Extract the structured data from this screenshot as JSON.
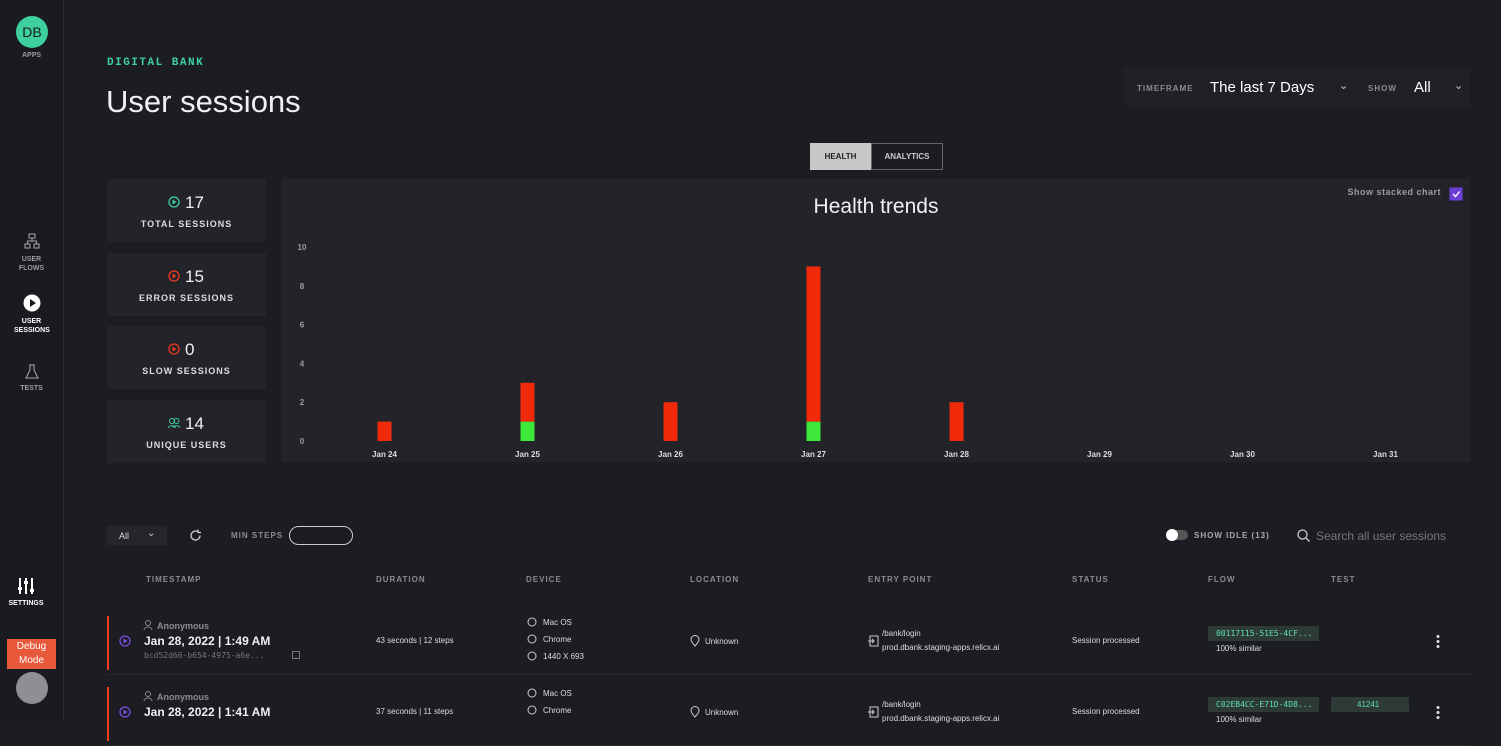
{
  "sidebar": {
    "logo": "DB",
    "apps": "APPS",
    "nav": [
      "USER FLOWS",
      "USER SESSIONS",
      "TESTS"
    ],
    "settings": "SETTINGS",
    "debug": "Debug Mode"
  },
  "header": {
    "eyebrow": "DIGITAL BANK",
    "title": "User sessions",
    "timeframe_label": "TIMEFRAME",
    "timeframe": "The last 7 Days",
    "show_label": "SHOW",
    "show": "All"
  },
  "tabs": [
    "HEALTH",
    "ANALYTICS"
  ],
  "stats": [
    {
      "value": 17,
      "label": "TOTAL SESSIONS"
    },
    {
      "value": 15,
      "label": "ERROR SESSIONS"
    },
    {
      "value": 0,
      "label": "SLOW SESSIONS"
    },
    {
      "value": 14,
      "label": "UNIQUE USERS"
    }
  ],
  "chart_data": {
    "type": "bar",
    "title": "Health trends",
    "stacked_toggle": "Show stacked chart",
    "stacked": true,
    "categories": [
      "Jan 24",
      "Jan 25",
      "Jan 26",
      "Jan 27",
      "Jan 28",
      "Jan 29",
      "Jan 30",
      "Jan 31"
    ],
    "series": [
      {
        "color": "#3ee83a",
        "values": [
          0,
          1,
          0,
          1,
          0,
          0,
          0,
          0
        ]
      },
      {
        "color": "#f02a0a",
        "values": [
          1,
          2,
          2,
          8,
          2,
          0,
          0,
          0
        ]
      }
    ],
    "ylim": [
      0,
      10
    ],
    "yticks": [
      0,
      2,
      4,
      6,
      8,
      10
    ],
    "grid": false
  },
  "filters": {
    "select": "All",
    "min_steps": "MIN STEPS",
    "show_idle": "SHOW IDLE (13)",
    "search": "Search all user sessions"
  },
  "table": {
    "columns": [
      "TIMESTAMP",
      "DURATION",
      "DEVICE",
      "LOCATION",
      "ENTRY POINT",
      "STATUS",
      "FLOW",
      "TEST"
    ],
    "rows": [
      {
        "user": "Anonymous",
        "timestamp": "Jan 28, 2022 | 1:49 AM",
        "id": "bcd52d66-b654-4975-a6e...",
        "duration": "43 seconds | 12 steps",
        "device": [
          "Mac OS",
          "Chrome",
          "1440 X 693"
        ],
        "location": "Unknown",
        "entry": [
          "/bank/login",
          "prod.dbank.staging-apps.relicx.ai"
        ],
        "status": "Session processed",
        "flow": "00117115-51E5-4CF...",
        "similarity": "100% similar",
        "test": null
      },
      {
        "user": "Anonymous",
        "timestamp": "Jan 28, 2022 | 1:41 AM",
        "id": null,
        "duration": "37 seconds | 11 steps",
        "device": [
          "Mac OS",
          "Chrome"
        ],
        "location": "Unknown",
        "entry": [
          "/bank/login",
          "prod.dbank.staging-apps.relicx.ai"
        ],
        "status": "Session processed",
        "flow": "C02EB4CC-E71D-4D8...",
        "similarity": "100% similar",
        "test": "41241"
      }
    ]
  }
}
